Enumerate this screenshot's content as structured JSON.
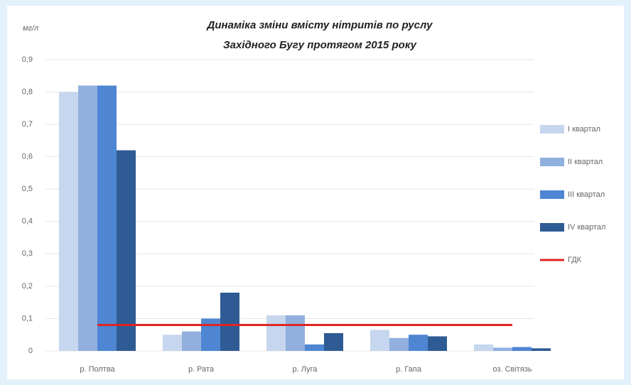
{
  "chart_data": {
    "type": "bar",
    "title": [
      "Динаміка зміни вмісту нітритів по руслу",
      "Західного Бугу протягом 2015 року"
    ],
    "y_label": "мг/л",
    "categories": [
      "р. Полтва",
      "р. Рата",
      "р. Луга",
      "р. Гапа",
      "оз. Світязь"
    ],
    "series": [
      {
        "name": "І квартал",
        "color": "#c6d6ee",
        "values": [
          0.8,
          0.05,
          0.11,
          0.065,
          0.02
        ]
      },
      {
        "name": "ІІ квартал",
        "color": "#91b0de",
        "values": [
          0.82,
          0.06,
          0.11,
          0.04,
          0.01
        ]
      },
      {
        "name": "ІІІ квартал",
        "color": "#4f86d3",
        "values": [
          0.82,
          0.1,
          0.02,
          0.05,
          0.012
        ]
      },
      {
        "name": "ІV квартал",
        "color": "#2f5b95",
        "values": [
          0.62,
          0.18,
          0.055,
          0.045,
          0.008
        ]
      }
    ],
    "threshold": {
      "name": "ГДК",
      "value": 0.08,
      "color": "#e02424"
    },
    "ylim": [
      0,
      0.9
    ],
    "yticks": [
      0,
      {
        "value": 0.1,
        "label": "0,1"
      },
      {
        "value": 0.2,
        "label": "0,2"
      },
      {
        "value": 0.3,
        "label": "0,3"
      },
      {
        "value": 0.4,
        "label": "0,4"
      },
      {
        "value": 0.5,
        "label": "0,5"
      },
      {
        "value": 0.6,
        "label": "0,6"
      },
      {
        "value": 0.7,
        "label": "0,7"
      },
      {
        "value": 0.8,
        "label": "0,8"
      },
      {
        "value": 0.9,
        "label": "0,9"
      }
    ],
    "grid": true,
    "legend": "right"
  }
}
